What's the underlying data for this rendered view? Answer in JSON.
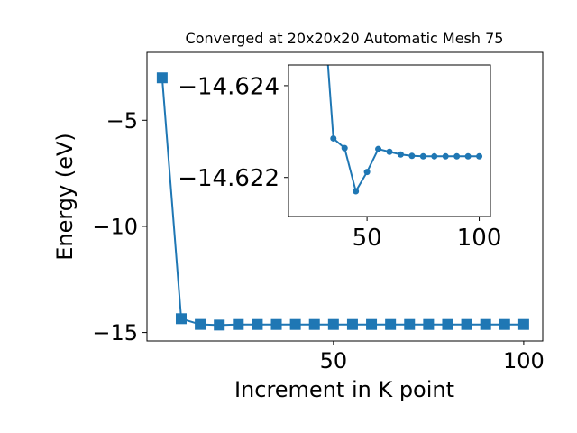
{
  "chart_data": [
    {
      "type": "line",
      "title": "Converged at 20x20x20 Automatic Mesh 75",
      "xlabel": "Increment in K point",
      "ylabel": "Energy (eV)",
      "x": [
        5,
        10,
        15,
        20,
        25,
        30,
        35,
        40,
        45,
        50,
        55,
        60,
        65,
        70,
        75,
        80,
        85,
        90,
        95,
        100
      ],
      "y": [
        -3.0,
        -14.35,
        -14.62,
        -14.65,
        -14.623,
        -14.6228,
        -14.6228,
        -14.6225,
        -14.6224,
        -14.6224,
        -14.6226,
        -14.6225,
        -14.6225,
        -14.6225,
        -14.6225,
        -14.6225,
        -14.6225,
        -14.6225,
        -14.6225,
        -14.6225
      ],
      "xlim": [
        1,
        105
      ],
      "ylim": [
        -15.4,
        -1.8
      ],
      "xticks": [
        50,
        100
      ],
      "xtick_labels": [
        "50",
        "100"
      ],
      "yticks": [
        -5,
        -10,
        -15
      ],
      "ytick_labels": [
        "−5",
        "−10",
        "−15"
      ],
      "marker": "square",
      "color": "#1f77b4",
      "grid": false
    },
    {
      "type": "line",
      "x": [
        35,
        40,
        45,
        50,
        55,
        60,
        65,
        70,
        75,
        80,
        85,
        90,
        95,
        100
      ],
      "y": [
        -14.62285,
        -14.62264,
        -14.6217,
        -14.62212,
        -14.62262,
        -14.62256,
        -14.6225,
        -14.62247,
        -14.62246,
        -14.62246,
        -14.62246,
        -14.62246,
        -14.62246,
        -14.62246
      ],
      "entry_from": [
        31,
        -14.6255
      ],
      "xlim": [
        15,
        105
      ],
      "ylim": [
        -14.62115,
        -14.62445
      ],
      "xticks": [
        50,
        100
      ],
      "xtick_labels": [
        "50",
        "100"
      ],
      "yticks": [
        -14.624,
        -14.622
      ],
      "ytick_labels": [
        "−14.624",
        "−14.622"
      ],
      "marker": "circle",
      "color": "#1f77b4",
      "grid": false
    }
  ]
}
